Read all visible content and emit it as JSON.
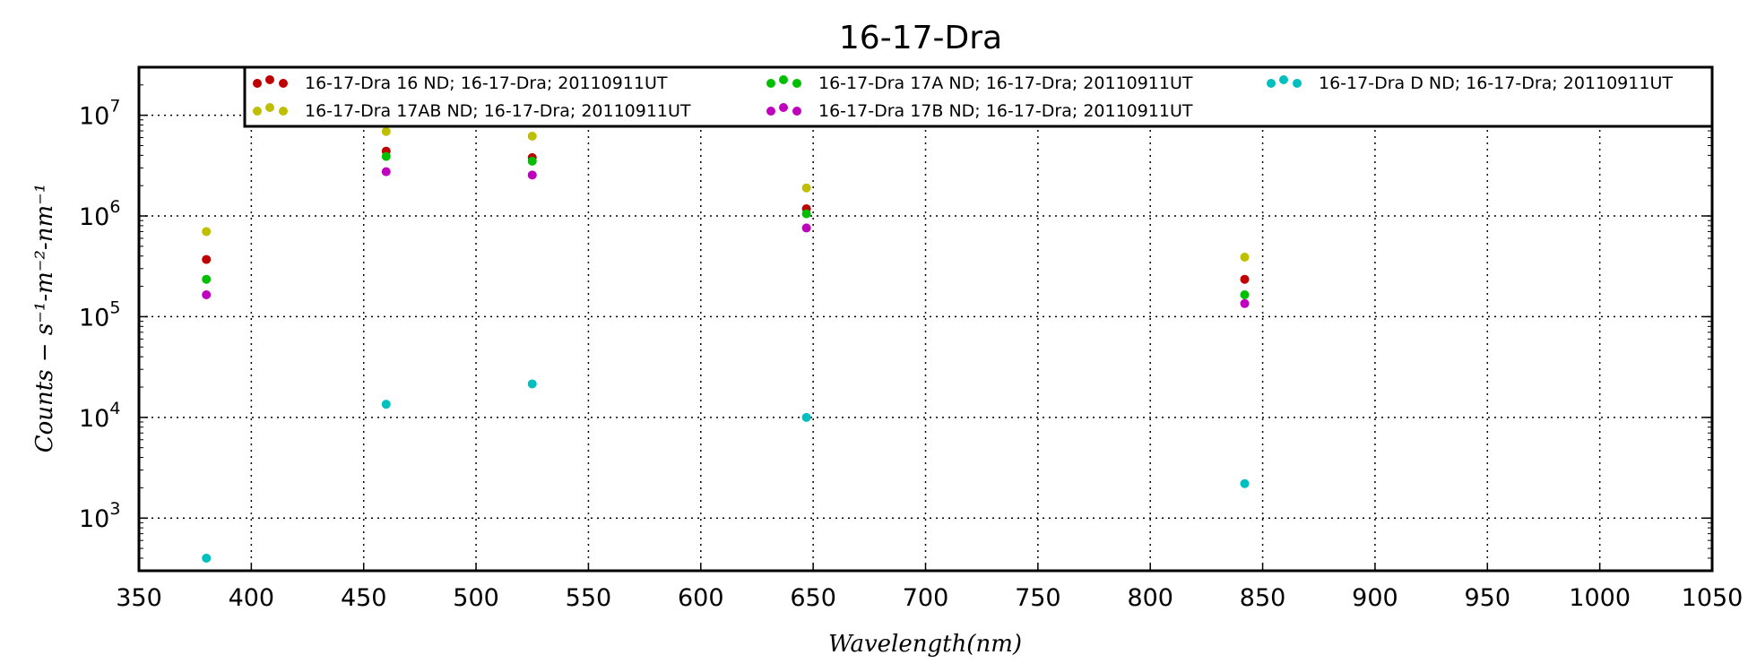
{
  "chart_data": {
    "type": "scatter",
    "title": "16-17-Dra",
    "xlabel": "Wavelength(nm)",
    "ylabel": "Counts − s⁻¹-m⁻²-nm⁻¹",
    "xlim": [
      350,
      1050
    ],
    "ylim": [
      300,
      30000000
    ],
    "yscale": "log",
    "x_ticks": [
      350,
      400,
      450,
      500,
      550,
      600,
      650,
      700,
      750,
      800,
      850,
      900,
      950,
      1000,
      1050
    ],
    "y_ticks": [
      {
        "value": 1000,
        "base": "10",
        "exp": "3"
      },
      {
        "value": 10000,
        "base": "10",
        "exp": "4"
      },
      {
        "value": 100000,
        "base": "10",
        "exp": "5"
      },
      {
        "value": 1000000,
        "base": "10",
        "exp": "6"
      },
      {
        "value": 10000000,
        "base": "10",
        "exp": "7"
      }
    ],
    "grid": true,
    "legend_position": "top",
    "series": [
      {
        "name": "16-17-Dra 16 ND; 16-17-Dra; 20110911UT",
        "color": "#bf0000",
        "points": [
          [
            380,
            370000
          ],
          [
            460,
            4400000
          ],
          [
            525,
            3800000
          ],
          [
            647,
            1180000
          ],
          [
            842,
            235000
          ]
        ]
      },
      {
        "name": "16-17-Dra 17AB ND; 16-17-Dra; 20110911UT",
        "color": "#bfbf00",
        "points": [
          [
            380,
            700000
          ],
          [
            460,
            6900000
          ],
          [
            525,
            6200000
          ],
          [
            647,
            1900000
          ],
          [
            842,
            390000
          ]
        ]
      },
      {
        "name": "16-17-Dra 17A ND; 16-17-Dra; 20110911UT",
        "color": "#00bf00",
        "points": [
          [
            380,
            235000
          ],
          [
            460,
            3900000
          ],
          [
            525,
            3500000
          ],
          [
            647,
            1050000
          ],
          [
            842,
            165000
          ]
        ]
      },
      {
        "name": "16-17-Dra 17B ND; 16-17-Dra; 20110911UT",
        "color": "#bf00bf",
        "points": [
          [
            380,
            165000
          ],
          [
            460,
            2750000
          ],
          [
            525,
            2550000
          ],
          [
            647,
            760000
          ],
          [
            842,
            135000
          ]
        ]
      },
      {
        "name": "16-17-Dra D ND; 16-17-Dra; 20110911UT",
        "color": "#00bfbf",
        "points": [
          [
            380,
            400
          ],
          [
            460,
            13500
          ],
          [
            525,
            21500
          ],
          [
            647,
            10000
          ],
          [
            842,
            2200
          ]
        ]
      }
    ]
  }
}
